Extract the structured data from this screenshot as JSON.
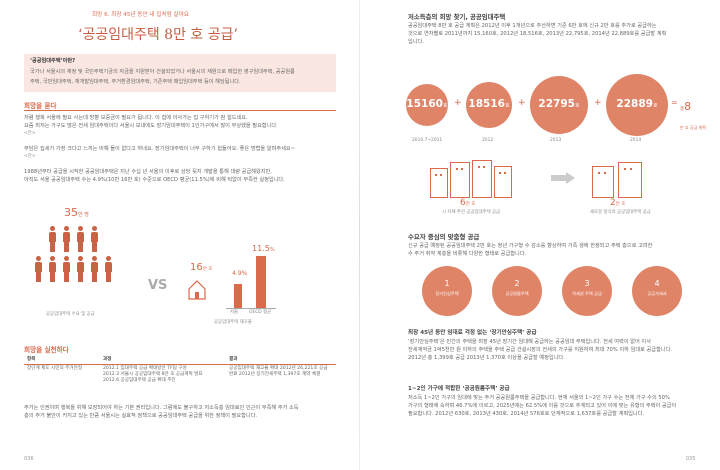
{
  "left": {
    "subtitle": "희망 6. 최장 45년 동안 내 집처럼 살아요",
    "title": "‘공공임대주택 8만 호 공급’",
    "box": {
      "heading": "‘공공임대주택’이란?",
      "text1": "국가나 서울시의 재정 및 국민주택기금의 자금을 지원받아 건설되었거나 서울시의 재원으로 매입한 영구임대주택, 공공원룸",
      "text2": "주택, 국민임대주택, 재개발임대주택, 주거환경임대주택, 기존주택 매입임대주택 등이 해당됩니다."
    },
    "sec1": "희망을 묻다",
    "p1a": "저렴 행복 서울에 필요 사는데 방향 보증금이 필요가 됩니다. 이 집에 이사가는 집 구하기가 참 힘드네요.",
    "p1b": "요즘 최저는 가구도 많은 전세 임대주택이다 서울시 보내에도 장기임대주택이 1인가구에서 많이 부상했을 필요합니다.",
    "p1c": "<전>",
    "p2": "부담은 집세가 가장 크다고 느끼는 비해 돌이 없다고 하네요. 장기임대주택이 너무 구하기 힘들어요. 좋은 방법을 알려주세요~",
    "p2b": "<전>",
    "p3a": "1988년부터 공급을 시작한 공공임대주택은 지난 수십 년 서울의 이후로 상당 뒷지 개발을 통해 대량 공급해왔지만,",
    "p3b": "아직도 서울 공공임대주택 수는 4.9%(10만 16만 호) 수준으로 OECD 평균(11.5%)에 비해 턱없이 부족한 실정입니다.",
    "persons_value": "35",
    "persons_unit": "만 명",
    "persons_caption": "공공임대주택 수요 및 공급",
    "vs": "VS",
    "house_value": "16",
    "house_unit": "만 호",
    "stock_caption": "공공임대주택 재고율",
    "seoul_value": "4.9",
    "seoul_unit": "%",
    "seoul_label": "서울",
    "oecd_value": "11.5",
    "oecd_unit": "%",
    "oecd_label": "OECD 평균",
    "sec2": "희망을 실천하다",
    "table_headers": [
      "항목",
      "과정",
      "결과"
    ],
    "table_rows": [
      {
        "item": "장단계 제도 시민의 주거안정",
        "steps": [
          "2012.1",
          "2012.3",
          "2012.6"
        ],
        "step_texts": [
          "임대주택 공급 확대방안 TF팀 구성",
          "서울시 공공임대주택 8만 호 공급계획 발표",
          "공공임대주택 공급 확대 추진"
        ],
        "result": "공공임대주택 재고율 확대 2012년 26,221호 공급 완료 2012년 장기전세주택 1,397호 계약 체결"
      }
    ],
    "p4a": "주거는 인권이며 행복을 위해 보장되어야 하는 기본 권리입니다. 그럼에도 불구하고 저소득층 임대료인 인근이 부족해 주거 소득",
    "p4b": "층의 주거 불안이 커지고 있는 만큼 서울시는 실효적 정책으로 공공임대주택 공급을 위한 정책이 필요합니다.",
    "page": "036"
  },
  "right": {
    "sec1": "저소득층의 희망 찾기, 공공임대주택",
    "p1a": "공공임대주택 8만 호 공급 계획은 2012년 이후 1개년으로 추산하면 기준 6만 호에 신규 2만 호를 추가로 공급하는",
    "p1b": "것으로 연차별로 2011년까지 15,160호, 2012년 18,516호, 2013년 22,795호, 2014년 22,889호를 공급할 계획",
    "p1c": "입니다.",
    "circles": [
      {
        "value": "15160",
        "unit": "호",
        "label": "2010.7~2011"
      },
      {
        "value": "18516",
        "unit": "호",
        "label": "2012"
      },
      {
        "value": "22795",
        "unit": "호",
        "label": "2013"
      },
      {
        "value": "22889",
        "unit": "호",
        "label": "2014"
      }
    ],
    "eq": "=",
    "total_prefix": "총",
    "total_value": "8",
    "total_unit": "만 호 공급 계획",
    "g1_value": "6",
    "g1_unit": "만 호",
    "g1_caption": "시 자체 추진 공공임대주택 공급",
    "g2_value": "2",
    "g2_unit": "만 호",
    "g2_caption": "새로운 방식의 공공임대주택 공급",
    "sec2": "수요자 중심의 맞춤형 공급",
    "p2a": "신규 공급 예정된 공공임대주택 2만 호는 청년 가구형 수 감소를 향상하여 가족 생애 한정되고 주택 층으로 고려한",
    "p2b": "수 주거 취약 계층을 비롯해 다양한 형태로 공급합니다.",
    "orgs": [
      {
        "num": "1",
        "label": "장기안심주택"
      },
      {
        "num": "2",
        "label": "공공원룸주택"
      },
      {
        "num": "3",
        "label": "역세권 주택 공급"
      },
      {
        "num": "4",
        "label": "공공가세서"
      }
    ],
    "sec3": "최장 45년 동안 임대료 걱정 없는 ‘장기안심주택’ 공급",
    "p3a": "‘장기안심주택’은 민간의 주택을 최장 45년 장기간 임대해 공급하는 공공임대 주택입니다. 전세 여력이 없어 이사",
    "p3b": "전세계약금 1억5천만 원 이하의 주택을 주택 공급 건설시장의 전세의 가구를 지원하여 최대 70% 이하 임대로 공급합니다.",
    "p3c": "2012년 총 1,399호 공급 2013년 1,370호 이상을 공급할 예정입니다.",
    "sec4": "1~2인 가구에 적합한 ‘공공원룸주택’ 공급",
    "p4a": "저소득 1~2인 가구의 임대에 맞는 주거 공공원룸주택을 공급합니다. 현재 서울의 1~2인 가구 수는 전체 가구 수의 50%",
    "p4b": "가구의 형태에 속하며 46.7%에 이르고, 2025년에는 62.5%에 이를 것으로 추계되고 있어 이에 맞는 유형의 주택이 공급이",
    "p4c": "필요합니다. 2012년 630호, 2013년 430호, 2014년 576호로 단계적으로 1,637호를 공급할 계획입니다.",
    "page": "035"
  },
  "colors": {
    "accent": "#d96a4c",
    "circle": "#e08468",
    "box": "#fbe7e1"
  }
}
